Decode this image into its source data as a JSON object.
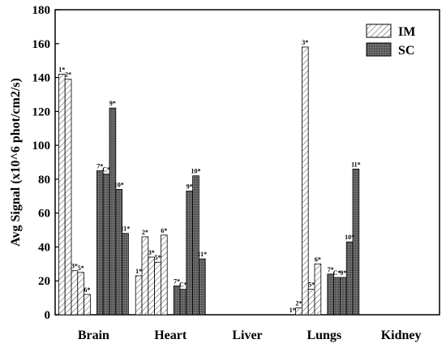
{
  "chart_data": {
    "type": "bar",
    "ylabel": "Avg Signal (x10^6 phot/cm2/s)",
    "ylim": [
      0,
      180
    ],
    "yticks": [
      0,
      20,
      40,
      60,
      80,
      100,
      120,
      140,
      160,
      180
    ],
    "categories": [
      "Brain",
      "Heart",
      "Liver",
      "Lungs",
      "Kidney"
    ],
    "legend": {
      "position": "top-right"
    },
    "series": [
      {
        "name": "IM",
        "pattern": "hatched",
        "color": "#ffffff",
        "bars": [
          [
            {
              "label": "1*",
              "value": 142
            },
            {
              "label": "2*",
              "value": 139
            },
            {
              "label": "3*",
              "value": 26
            },
            {
              "label": "5*",
              "value": 25
            },
            {
              "label": "6*",
              "value": 12
            }
          ],
          [
            {
              "label": "1*",
              "value": 23
            },
            {
              "label": "2*",
              "value": 46
            },
            {
              "label": "3*",
              "value": 34
            },
            {
              "label": "5*",
              "value": 31
            },
            {
              "label": "6*",
              "value": 47
            }
          ],
          [],
          [
            {
              "label": "1*",
              "value": 0
            },
            {
              "label": "2*",
              "value": 4
            },
            {
              "label": "3*",
              "value": 158
            },
            {
              "label": "5*",
              "value": 15
            },
            {
              "label": "6*",
              "value": 30
            }
          ],
          []
        ]
      },
      {
        "name": "SC",
        "pattern": "dotted",
        "color": "#5a5a5a",
        "bars": [
          [
            {
              "label": "7*",
              "value": 85
            },
            {
              "label": "C*",
              "value": 83
            },
            {
              "label": "9*",
              "value": 122
            },
            {
              "label": "10*",
              "value": 74
            },
            {
              "label": "11*",
              "value": 48
            }
          ],
          [
            {
              "label": "7*",
              "value": 17
            },
            {
              "label": "C*",
              "value": 15
            },
            {
              "label": "9*",
              "value": 73
            },
            {
              "label": "10*",
              "value": 82
            },
            {
              "label": "11*",
              "value": 33
            }
          ],
          [],
          [
            {
              "label": "7*",
              "value": 24
            },
            {
              "label": "C*",
              "value": 22
            },
            {
              "label": "9*",
              "value": 22
            },
            {
              "label": "10*",
              "value": 43
            },
            {
              "label": "11*",
              "value": 86
            }
          ],
          []
        ]
      }
    ]
  }
}
